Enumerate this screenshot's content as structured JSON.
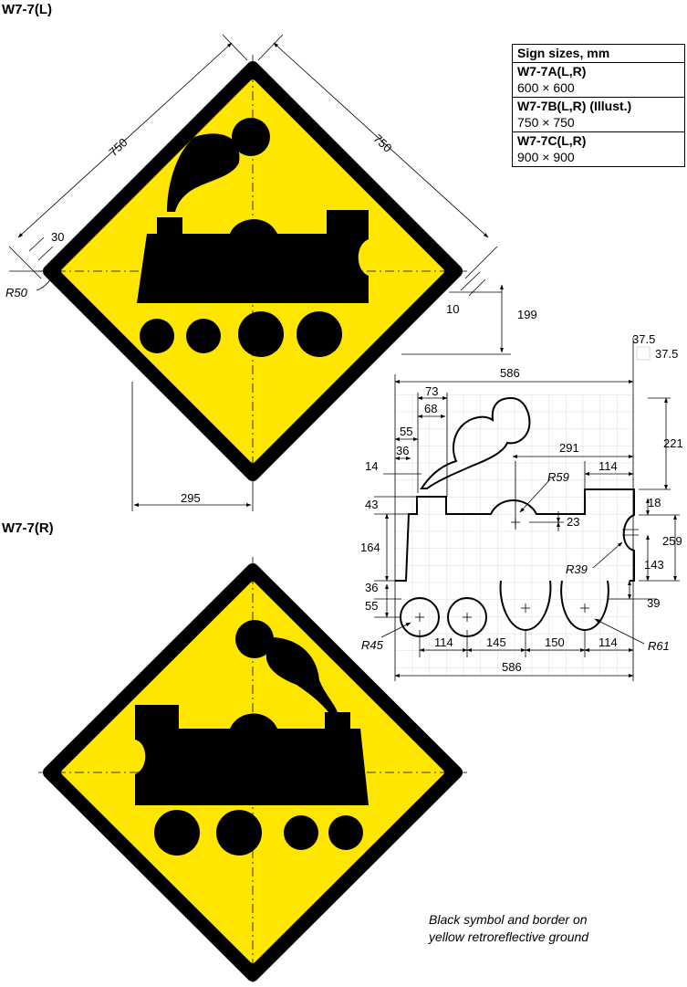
{
  "headings": {
    "left": "W7-7(L)",
    "right": "W7-7(R)"
  },
  "sizes_table": {
    "title": "Sign sizes, mm",
    "rows": [
      {
        "code": "W7-7A(L,R)",
        "size": "600 × 600"
      },
      {
        "code": "W7-7B(L,R) (Illust.)",
        "size": "750 × 750"
      },
      {
        "code": "W7-7C(L,R)",
        "size": "900 × 900"
      }
    ]
  },
  "note": {
    "line1": "Black symbol and border on",
    "line2": "yellow retroreflective ground"
  },
  "colors": {
    "sign_yellow": "#FFE600",
    "symbol_black": "#000000",
    "grid": "#cfcfcf"
  },
  "sign_dimensions": {
    "side_left": "750",
    "side_right": "750",
    "border": "30",
    "radius": "R50",
    "margin": "10",
    "offset_v": "199",
    "offset_h": "295"
  },
  "grid_dimensions": {
    "cell_a": "37.5",
    "cell_b": "37.5",
    "width_top": "586",
    "width_bottom": "586",
    "d73": "73",
    "d68": "68",
    "d55": "55",
    "d36": "36",
    "d14": "14",
    "d291": "291",
    "d114_top": "114",
    "r59": "R59",
    "d23": "23",
    "d221": "221",
    "d18": "18",
    "d259": "259",
    "d143": "143",
    "r39": "R39",
    "d43": "43",
    "d164": "164",
    "d36_left": "36",
    "d55_left": "55",
    "d39": "39",
    "r45": "R45",
    "d114_a": "114",
    "d145": "145",
    "d150": "150",
    "d114_b": "114",
    "r61": "R61"
  }
}
